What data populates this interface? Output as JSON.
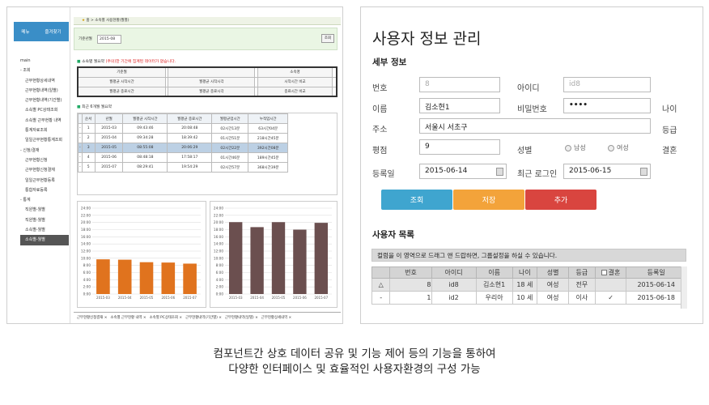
{
  "left": {
    "side_buttons": [
      "메뉴",
      "즐겨찾기"
    ],
    "tree": [
      {
        "label": "main",
        "cls": ""
      },
      {
        "label": "- 조회",
        "cls": ""
      },
      {
        "label": "근무현황상세내역",
        "cls": "sub"
      },
      {
        "label": "근무현황내역(일별)",
        "cls": "sub"
      },
      {
        "label": "근무현황내역(기간별)",
        "cls": "sub"
      },
      {
        "label": "소속별 PC상태조회",
        "cls": "sub"
      },
      {
        "label": "소속별 근무현황 내역",
        "cls": "sub"
      },
      {
        "label": "통계자료조회",
        "cls": "sub"
      },
      {
        "label": "일일근무현황통계조회",
        "cls": "sub"
      },
      {
        "label": "- 신청/결재",
        "cls": ""
      },
      {
        "label": "근무현황신청",
        "cls": "sub"
      },
      {
        "label": "근무현황신청결재",
        "cls": "sub"
      },
      {
        "label": "일일근무현황등록",
        "cls": "sub"
      },
      {
        "label": "통합자료등록",
        "cls": "sub"
      },
      {
        "label": "- 통계",
        "cls": ""
      },
      {
        "label": "직원별-월별",
        "cls": "sub"
      },
      {
        "label": "직원별-월별",
        "cls": "sub"
      },
      {
        "label": "소속별-월별",
        "cls": "sub"
      },
      {
        "label": "소속별-월별",
        "cls": "sub sel"
      }
    ],
    "breadcrumb": "홈 > 소속별 사용현황(월별)",
    "filter_label": "기준년월",
    "filter_value": "2015-08",
    "filter_button": "조회",
    "notice_title": "소속별 월요약",
    "notice_text": "(주의)한 기간에 집계된 데이터가 없습니다.",
    "summary_rows": [
      [
        "기준월",
        "",
        "",
        "",
        "소속명",
        ""
      ],
      [
        "월평균 시작시간",
        "",
        "월평균 시작시각",
        "",
        "시작시간 비교",
        ""
      ],
      [
        "월평균 종료시간",
        "",
        "월평균 종료시각",
        "",
        "종료시간 비교",
        ""
      ]
    ],
    "monthly_title": "최근 6개월 월요약",
    "monthly_headers": [
      "",
      "순서",
      "년월",
      "월평균 시작시간",
      "월평균 종료시간",
      "월평균업시간",
      "누적업시간"
    ],
    "monthly_rows": [
      [
        "-",
        "1",
        "2015-03",
        "09:43:46",
        "20:08:48",
        "02시간13분",
        "63시간04분"
      ],
      [
        "-",
        "2",
        "2015-04",
        "09:34:28",
        "18:39:42",
        "01시간51분",
        "218시간45분"
      ],
      [
        "-",
        "3",
        "2015-05",
        "08:55:08",
        "20:06:29",
        "02시간22분",
        "392시간08분"
      ],
      [
        "-",
        "4",
        "2015-06",
        "08:48:18",
        "17:58:17",
        "01시간46분",
        "189시간45분"
      ],
      [
        "-",
        "5",
        "2015-07",
        "08:29:41",
        "19:54:29",
        "02시간57분",
        "368시간39분"
      ]
    ],
    "chart_ticks": [
      "24:00",
      "22:00",
      "20:00",
      "18:00",
      "16:00",
      "14:00",
      "12:00",
      "10:00",
      "8:00",
      "6:00",
      "4:00",
      "2:00",
      "0:00"
    ],
    "tabs": [
      "근무현황신청결재 ×",
      "소속별 근무현황 내역 ×",
      "소속별 PC상태조회 ×",
      "근무현황내역(기간별) ×",
      "근무현황내역(일별) ×",
      "근무현황상세내역 ×"
    ]
  },
  "chart_data": [
    {
      "type": "bar",
      "categories": [
        "2015-03",
        "2015-04",
        "2015-05",
        "2015-06",
        "2015-07"
      ],
      "values": [
        9.7,
        9.6,
        8.9,
        8.8,
        8.5
      ],
      "ylim": [
        0,
        24
      ],
      "color": "#e0731e"
    },
    {
      "type": "bar",
      "categories": [
        "2015-03",
        "2015-04",
        "2015-05",
        "2015-06",
        "2015-07"
      ],
      "values": [
        20.1,
        18.7,
        20.1,
        18.0,
        19.9
      ],
      "ylim": [
        0,
        24
      ],
      "color": "#6b4f4f"
    }
  ],
  "right": {
    "title": "사용자 정보 관리",
    "detail_title": "세부 정보",
    "labels": {
      "no": "번호",
      "id": "아이디",
      "name": "이름",
      "pw": "비밀번호",
      "age": "나이",
      "addr": "주소",
      "grade": "등급",
      "rating": "평점",
      "gender": "성별",
      "married": "결혼",
      "regdate": "등록일",
      "lastlogin": "최근 로그인"
    },
    "values": {
      "no": "8",
      "id": "id8",
      "name": "김소현1",
      "pw": "••••",
      "addr": "서울시 서초구",
      "rating": "9",
      "regdate": "2015-06-14",
      "lastlogin": "2015-06-15"
    },
    "gender_male": "남성",
    "gender_female": "여성",
    "buttons": {
      "search": "조회",
      "save": "저장",
      "add": "추가"
    },
    "colors": {
      "search": "#3fa5cf",
      "save": "#f3a33a",
      "add": "#d9453f"
    },
    "list_title": "사용자 목록",
    "group_hint": "컬럼을 이 영역으로 드래그 앤 드랍하면, 그룹설정을 하실 수 있습니다.",
    "grid_headers": [
      "",
      "번호",
      "아이디",
      "이름",
      "나이",
      "성별",
      "등급",
      "결혼",
      "등록일"
    ],
    "grid_rows": [
      [
        "△",
        "8",
        "id8",
        "김소현1",
        "18 세",
        "여성",
        "전무",
        "",
        "2015-06-14"
      ],
      [
        "-",
        "1",
        "id2",
        "우리아",
        "10 세",
        "여성",
        "이사",
        "✓",
        "2015-06-18"
      ]
    ]
  },
  "caption": [
    "컴포넌트간 상호 데이터 공유 및 기능 제어 등의 기능을 통하여",
    "다양한 인터페이스 및 효율적인 사용자환경의 구성 가능"
  ]
}
